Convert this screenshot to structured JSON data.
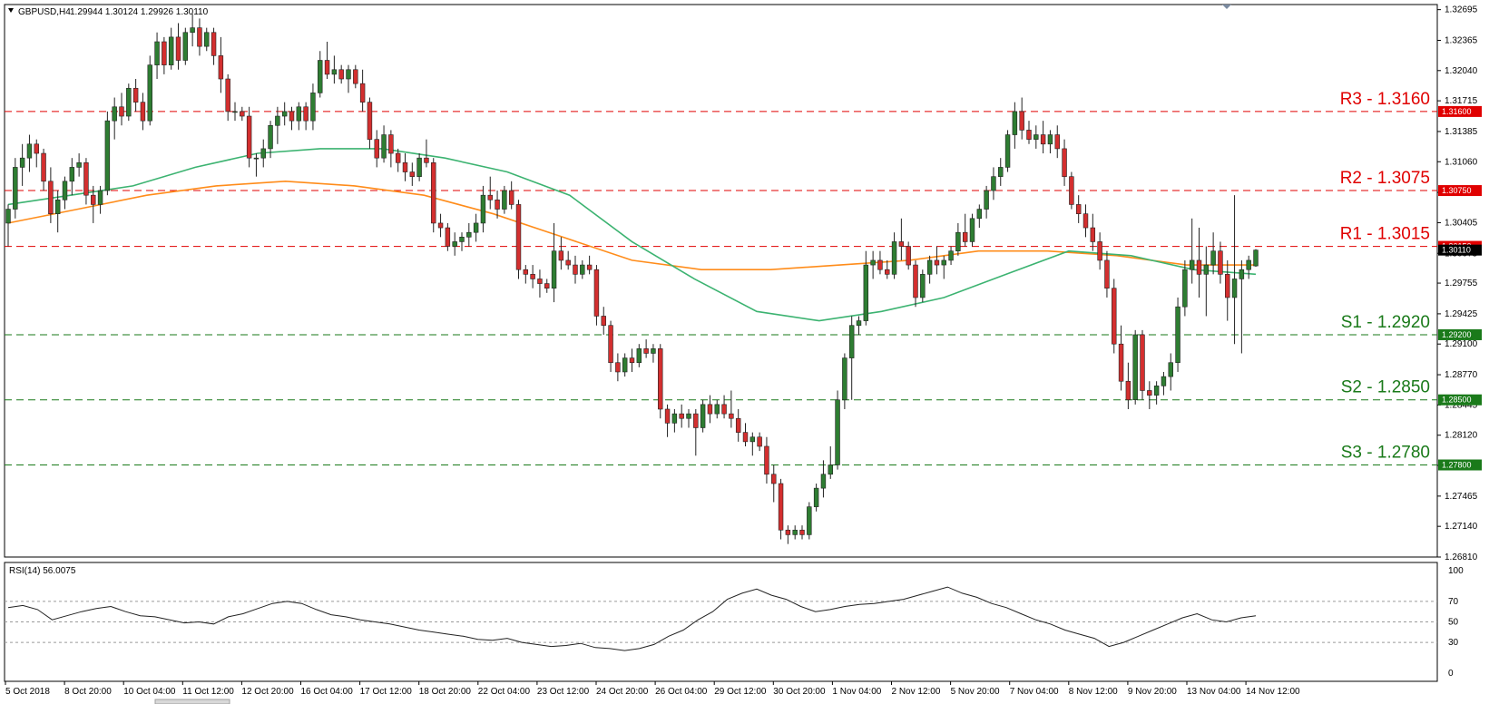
{
  "header": {
    "symbol": "GBPUSD,H4",
    "ohlc": "1.29944 1.30124 1.29926 1.30110"
  },
  "rsi_header": "RSI(14) 56.0075",
  "price_axis": {
    "ticks": [
      "1.32695",
      "1.32365",
      "1.32040",
      "1.31715",
      "1.31385",
      "1.31060",
      "1.30730",
      "1.30405",
      "1.30075",
      "1.29755",
      "1.29425",
      "1.29100",
      "1.28770",
      "1.28445",
      "1.28120",
      "1.27795",
      "1.27465",
      "1.27140",
      "1.26810"
    ]
  },
  "rsi_axis": {
    "ticks": [
      "100",
      "70",
      "50",
      "30",
      "0"
    ]
  },
  "time_axis": {
    "labels": [
      "5 Oct 2018",
      "8 Oct 20:00",
      "10 Oct 04:00",
      "11 Oct 12:00",
      "12 Oct 20:00",
      "16 Oct 04:00",
      "17 Oct 12:00",
      "18 Oct 20:00",
      "22 Oct 04:00",
      "23 Oct 12:00",
      "24 Oct 20:00",
      "26 Oct 04:00",
      "29 Oct 12:00",
      "30 Oct 20:00",
      "1 Nov 04:00",
      "2 Nov 12:00",
      "5 Nov 20:00",
      "7 Nov 04:00",
      "8 Nov 12:00",
      "9 Nov 20:00",
      "13 Nov 04:00",
      "14 Nov 12:00"
    ]
  },
  "levels": [
    {
      "name": "R3",
      "label": "R3 - 1.3160",
      "badge": "1.31600",
      "value": 1.316,
      "type": "resistance"
    },
    {
      "name": "R2",
      "label": "R2 - 1.3075",
      "badge": "1.30750",
      "value": 1.3075,
      "type": "resistance"
    },
    {
      "name": "R1",
      "label": "R1 - 1.3015",
      "badge": "1.30150",
      "value": 1.3015,
      "type": "resistance"
    },
    {
      "name": "S1",
      "label": "S1 - 1.2920",
      "badge": "1.29200",
      "value": 1.292,
      "type": "support"
    },
    {
      "name": "S2",
      "label": "S2 - 1.2850",
      "badge": "1.28500",
      "value": 1.285,
      "type": "support"
    },
    {
      "name": "S3",
      "label": "S3 - 1.2780",
      "badge": "1.27800",
      "value": 1.278,
      "type": "support"
    }
  ],
  "current_price_badge": "1.30110",
  "colors": {
    "bull": "#2e7d32",
    "bear": "#d32f2f",
    "ma_fast": "#3cb371",
    "ma_slow": "#ff8c1a",
    "resistance": "#e00000",
    "support": "#1a7a1a",
    "rsi_line": "#222222"
  },
  "chart_data": [
    {
      "type": "candlestick",
      "symbol": "GBPUSD",
      "timeframe": "H4",
      "ylim": [
        1.2681,
        1.3275
      ],
      "candles": [
        [
          1.304,
          1.306,
          1.3015,
          1.3055
        ],
        [
          1.3055,
          1.311,
          1.3045,
          1.31
        ],
        [
          1.31,
          1.3125,
          1.308,
          1.311
        ],
        [
          1.311,
          1.3135,
          1.3095,
          1.3125
        ],
        [
          1.3125,
          1.313,
          1.31,
          1.3115
        ],
        [
          1.3115,
          1.312,
          1.3075,
          1.3085
        ],
        [
          1.3085,
          1.31,
          1.304,
          1.305
        ],
        [
          1.305,
          1.3075,
          1.303,
          1.3065
        ],
        [
          1.3065,
          1.309,
          1.3055,
          1.3085
        ],
        [
          1.3085,
          1.311,
          1.307,
          1.31
        ],
        [
          1.31,
          1.3115,
          1.309,
          1.3105
        ],
        [
          1.3105,
          1.311,
          1.306,
          1.307
        ],
        [
          1.307,
          1.308,
          1.304,
          1.306
        ],
        [
          1.306,
          1.308,
          1.305,
          1.3075
        ],
        [
          1.3075,
          1.316,
          1.307,
          1.315
        ],
        [
          1.315,
          1.3175,
          1.313,
          1.3165
        ],
        [
          1.3165,
          1.318,
          1.3145,
          1.3155
        ],
        [
          1.3155,
          1.319,
          1.315,
          1.3185
        ],
        [
          1.3185,
          1.3195,
          1.316,
          1.317
        ],
        [
          1.317,
          1.318,
          1.314,
          1.315
        ],
        [
          1.315,
          1.322,
          1.3145,
          1.321
        ],
        [
          1.321,
          1.3245,
          1.3195,
          1.3235
        ],
        [
          1.3235,
          1.324,
          1.32,
          1.321
        ],
        [
          1.321,
          1.325,
          1.3205,
          1.324
        ],
        [
          1.324,
          1.3255,
          1.3205,
          1.3215
        ],
        [
          1.3215,
          1.325,
          1.321,
          1.3245
        ],
        [
          1.3245,
          1.3265,
          1.323,
          1.325
        ],
        [
          1.325,
          1.326,
          1.322,
          1.323
        ],
        [
          1.323,
          1.325,
          1.3225,
          1.3245
        ],
        [
          1.3245,
          1.325,
          1.321,
          1.322
        ],
        [
          1.322,
          1.324,
          1.318,
          1.3195
        ],
        [
          1.3195,
          1.32,
          1.315,
          1.316
        ],
        [
          1.316,
          1.317,
          1.315,
          1.316
        ],
        [
          1.316,
          1.3165,
          1.315,
          1.3155
        ],
        [
          1.3155,
          1.3165,
          1.31,
          1.311
        ],
        [
          1.311,
          1.3115,
          1.309,
          1.311
        ],
        [
          1.311,
          1.313,
          1.31,
          1.312
        ],
        [
          1.312,
          1.315,
          1.311,
          1.3145
        ],
        [
          1.3145,
          1.3165,
          1.3125,
          1.3155
        ],
        [
          1.3155,
          1.317,
          1.3145,
          1.316
        ],
        [
          1.316,
          1.3165,
          1.314,
          1.315
        ],
        [
          1.315,
          1.317,
          1.314,
          1.3165
        ],
        [
          1.3165,
          1.317,
          1.314,
          1.315
        ],
        [
          1.315,
          1.319,
          1.314,
          1.318
        ],
        [
          1.318,
          1.3225,
          1.3175,
          1.3215
        ],
        [
          1.3215,
          1.3235,
          1.3195,
          1.32
        ],
        [
          1.32,
          1.322,
          1.319,
          1.3205
        ],
        [
          1.3205,
          1.321,
          1.319,
          1.3195
        ],
        [
          1.3195,
          1.321,
          1.318,
          1.3205
        ],
        [
          1.3205,
          1.321,
          1.3185,
          1.319
        ],
        [
          1.319,
          1.3205,
          1.316,
          1.317
        ],
        [
          1.317,
          1.3175,
          1.312,
          1.313
        ],
        [
          1.313,
          1.314,
          1.31,
          1.311
        ],
        [
          1.311,
          1.3145,
          1.3105,
          1.3135
        ],
        [
          1.3135,
          1.314,
          1.31,
          1.3115
        ],
        [
          1.3115,
          1.312,
          1.3095,
          1.3105
        ],
        [
          1.3105,
          1.3115,
          1.3085,
          1.3095
        ],
        [
          1.3095,
          1.3105,
          1.308,
          1.309
        ],
        [
          1.309,
          1.3115,
          1.3085,
          1.311
        ],
        [
          1.311,
          1.313,
          1.31,
          1.3105
        ],
        [
          1.3105,
          1.311,
          1.303,
          1.304
        ],
        [
          1.304,
          1.305,
          1.3025,
          1.3035
        ],
        [
          1.3035,
          1.304,
          1.301,
          1.3015
        ],
        [
          1.3015,
          1.303,
          1.3005,
          1.302
        ],
        [
          1.302,
          1.303,
          1.301,
          1.3025
        ],
        [
          1.3025,
          1.304,
          1.3015,
          1.303
        ],
        [
          1.303,
          1.305,
          1.302,
          1.304
        ],
        [
          1.304,
          1.308,
          1.303,
          1.307
        ],
        [
          1.307,
          1.309,
          1.3055,
          1.3065
        ],
        [
          1.3065,
          1.3075,
          1.3045,
          1.3055
        ],
        [
          1.3055,
          1.308,
          1.305,
          1.3075
        ],
        [
          1.3075,
          1.3085,
          1.3055,
          1.306
        ],
        [
          1.306,
          1.3065,
          1.298,
          1.299
        ],
        [
          1.299,
          1.2995,
          1.2975,
          1.2985
        ],
        [
          1.2985,
          1.2995,
          1.297,
          1.298
        ],
        [
          1.298,
          1.299,
          1.296,
          1.2975
        ],
        [
          1.2975,
          1.298,
          1.2965,
          1.297
        ],
        [
          1.297,
          1.304,
          1.2955,
          1.301
        ],
        [
          1.301,
          1.3025,
          1.299,
          1.3
        ],
        [
          1.3,
          1.301,
          1.299,
          1.2995
        ],
        [
          1.2995,
          1.3005,
          1.2975,
          1.2985
        ],
        [
          1.2985,
          1.3,
          1.298,
          1.2995
        ],
        [
          1.2995,
          1.3005,
          1.2985,
          1.299
        ],
        [
          1.299,
          1.2995,
          1.293,
          1.294
        ],
        [
          1.294,
          1.295,
          1.292,
          1.293
        ],
        [
          1.293,
          1.2935,
          1.288,
          1.289
        ],
        [
          1.289,
          1.29,
          1.287,
          1.288
        ],
        [
          1.288,
          1.29,
          1.2875,
          1.2895
        ],
        [
          1.2895,
          1.2905,
          1.288,
          1.289
        ],
        [
          1.289,
          1.291,
          1.2885,
          1.2905
        ],
        [
          1.2905,
          1.2915,
          1.2895,
          1.29
        ],
        [
          1.29,
          1.291,
          1.289,
          1.2905
        ],
        [
          1.2905,
          1.291,
          1.283,
          1.284
        ],
        [
          1.284,
          1.2845,
          1.281,
          1.2825
        ],
        [
          1.2825,
          1.284,
          1.2815,
          1.2835
        ],
        [
          1.2835,
          1.2845,
          1.282,
          1.283
        ],
        [
          1.283,
          1.284,
          1.282,
          1.2835
        ],
        [
          1.2835,
          1.284,
          1.279,
          1.282
        ],
        [
          1.282,
          1.285,
          1.2815,
          1.2845
        ],
        [
          1.2845,
          1.2855,
          1.2825,
          1.2835
        ],
        [
          1.2835,
          1.285,
          1.283,
          1.2845
        ],
        [
          1.2845,
          1.2855,
          1.283,
          1.2835
        ],
        [
          1.2835,
          1.286,
          1.282,
          1.283
        ],
        [
          1.283,
          1.284,
          1.2805,
          1.2815
        ],
        [
          1.2815,
          1.2825,
          1.28,
          1.2805
        ],
        [
          1.2805,
          1.2815,
          1.279,
          1.281
        ],
        [
          1.281,
          1.2815,
          1.2795,
          1.28
        ],
        [
          1.28,
          1.281,
          1.276,
          1.277
        ],
        [
          1.277,
          1.278,
          1.274,
          1.276
        ],
        [
          1.276,
          1.2765,
          1.27,
          1.271
        ],
        [
          1.271,
          1.2715,
          1.2695,
          1.2705
        ],
        [
          1.2705,
          1.2715,
          1.27,
          1.271
        ],
        [
          1.271,
          1.2715,
          1.27,
          1.2705
        ],
        [
          1.2705,
          1.274,
          1.27,
          1.2735
        ],
        [
          1.2735,
          1.276,
          1.273,
          1.2755
        ],
        [
          1.2755,
          1.2785,
          1.2745,
          1.277
        ],
        [
          1.277,
          1.28,
          1.2765,
          1.278
        ],
        [
          1.278,
          1.286,
          1.2775,
          1.285
        ],
        [
          1.285,
          1.29,
          1.284,
          1.2895
        ],
        [
          1.2895,
          1.294,
          1.285,
          1.293
        ],
        [
          1.293,
          1.294,
          1.292,
          1.2935
        ],
        [
          1.2935,
          1.301,
          1.293,
          1.2995
        ],
        [
          1.2995,
          1.301,
          1.298,
          1.3
        ],
        [
          1.3,
          1.301,
          1.2985,
          1.299
        ],
        [
          1.299,
          1.3,
          1.298,
          1.2985
        ],
        [
          1.2985,
          1.303,
          1.298,
          1.302
        ],
        [
          1.302,
          1.3045,
          1.3,
          1.3015
        ],
        [
          1.3015,
          1.302,
          1.299,
          1.2995
        ],
        [
          1.2995,
          1.3,
          1.295,
          1.296
        ],
        [
          1.296,
          1.299,
          1.2955,
          1.2985
        ],
        [
          1.2985,
          1.3005,
          1.2975,
          1.3
        ],
        [
          1.3,
          1.3015,
          1.2985,
          1.2995
        ],
        [
          1.2995,
          1.3005,
          1.298,
          1.3
        ],
        [
          1.3,
          1.3015,
          1.2995,
          1.301
        ],
        [
          1.301,
          1.304,
          1.3005,
          1.303
        ],
        [
          1.303,
          1.305,
          1.3015,
          1.302
        ],
        [
          1.302,
          1.305,
          1.3015,
          1.3045
        ],
        [
          1.3045,
          1.306,
          1.3035,
          1.3055
        ],
        [
          1.3055,
          1.308,
          1.3045,
          1.3075
        ],
        [
          1.3075,
          1.31,
          1.3065,
          1.309
        ],
        [
          1.309,
          1.311,
          1.308,
          1.31
        ],
        [
          1.31,
          1.314,
          1.3095,
          1.3135
        ],
        [
          1.3135,
          1.317,
          1.312,
          1.316
        ],
        [
          1.316,
          1.3175,
          1.313,
          1.314
        ],
        [
          1.314,
          1.315,
          1.3125,
          1.313
        ],
        [
          1.313,
          1.3145,
          1.312,
          1.3135
        ],
        [
          1.3135,
          1.315,
          1.3115,
          1.3125
        ],
        [
          1.3125,
          1.314,
          1.3115,
          1.3135
        ],
        [
          1.3135,
          1.3145,
          1.311,
          1.312
        ],
        [
          1.312,
          1.313,
          1.308,
          1.309
        ],
        [
          1.309,
          1.3095,
          1.3055,
          1.306
        ],
        [
          1.306,
          1.307,
          1.304,
          1.305
        ],
        [
          1.305,
          1.306,
          1.3025,
          1.3035
        ],
        [
          1.3035,
          1.305,
          1.301,
          1.302
        ],
        [
          1.302,
          1.303,
          1.299,
          1.3
        ],
        [
          1.3,
          1.301,
          1.296,
          1.297
        ],
        [
          1.297,
          1.298,
          1.29,
          1.291
        ],
        [
          1.291,
          1.293,
          1.286,
          1.287
        ],
        [
          1.287,
          1.289,
          1.284,
          1.285
        ],
        [
          1.285,
          1.2925,
          1.2845,
          1.292
        ],
        [
          1.292,
          1.2925,
          1.285,
          1.286
        ],
        [
          1.286,
          1.287,
          1.284,
          1.2855
        ],
        [
          1.2855,
          1.287,
          1.2845,
          1.2865
        ],
        [
          1.2865,
          1.288,
          1.2855,
          1.2875
        ],
        [
          1.2875,
          1.29,
          1.286,
          1.289
        ],
        [
          1.289,
          1.296,
          1.288,
          1.295
        ],
        [
          1.295,
          1.3,
          1.294,
          1.299
        ],
        [
          1.299,
          1.3045,
          1.2975,
          1.3
        ],
        [
          1.3,
          1.3035,
          1.296,
          1.2985
        ],
        [
          1.2985,
          1.3015,
          1.294,
          1.2995
        ],
        [
          1.2995,
          1.303,
          1.2985,
          1.301
        ],
        [
          1.301,
          1.302,
          1.2975,
          1.2985
        ],
        [
          1.2985,
          1.3,
          1.2935,
          1.296
        ],
        [
          1.296,
          1.307,
          1.291,
          1.298
        ],
        [
          1.298,
          1.3,
          1.29,
          1.299
        ],
        [
          1.299,
          1.3005,
          1.298,
          1.3
        ],
        [
          1.2994,
          1.3012,
          1.2993,
          1.3011
        ]
      ],
      "ma_fast": [
        1.306,
        1.307,
        1.308,
        1.31,
        1.3115,
        1.312,
        1.312,
        1.311,
        1.3095,
        1.307,
        1.302,
        1.298,
        1.2945,
        1.2935,
        1.2945,
        1.296,
        1.2985,
        1.301,
        1.3005,
        1.299,
        1.2985
      ],
      "ma_slow": [
        1.304,
        1.3055,
        1.307,
        1.308,
        1.3085,
        1.308,
        1.307,
        1.305,
        1.3025,
        1.3,
        1.299,
        1.299,
        1.2995,
        1.3,
        1.301,
        1.301,
        1.3005,
        1.2995,
        1.2995
      ],
      "rsi": [
        64,
        66,
        62,
        52,
        56,
        60,
        63,
        65,
        60,
        56,
        55,
        52,
        49,
        50,
        48,
        55,
        58,
        63,
        68,
        70,
        68,
        62,
        57,
        55,
        52,
        50,
        48,
        45,
        42,
        40,
        38,
        36,
        33,
        32,
        34,
        30,
        28,
        26,
        27,
        29,
        25,
        24,
        22,
        24,
        28,
        36,
        42,
        52,
        60,
        72,
        78,
        82,
        76,
        72,
        65,
        60,
        62,
        65,
        67,
        68,
        70,
        72,
        76,
        80,
        84,
        78,
        74,
        68,
        64,
        58,
        52,
        48,
        42,
        38,
        34,
        26,
        30,
        36,
        42,
        48,
        54,
        58,
        52,
        50,
        54,
        56
      ]
    }
  ]
}
